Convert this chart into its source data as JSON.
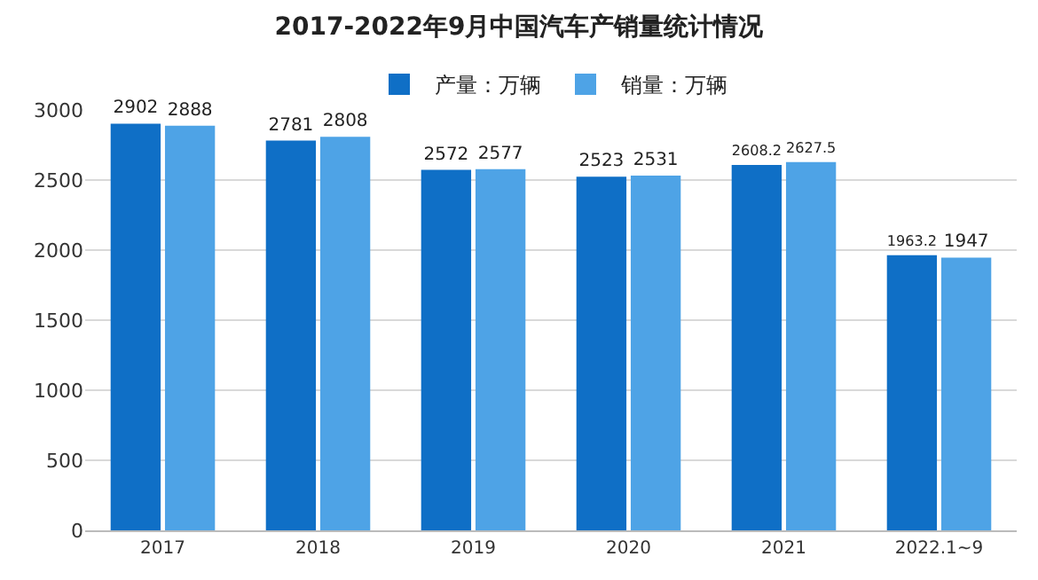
{
  "chart_data": {
    "type": "bar",
    "title": "2017-2022年9月中国汽车产销量统计情况",
    "categories": [
      "2017",
      "2018",
      "2019",
      "2020",
      "2021",
      "2022.1~9"
    ],
    "series": [
      {
        "name": "产量：万辆",
        "color": "#0f6fc6",
        "values": [
          2902,
          2781,
          2572,
          2523,
          2608.2,
          1963.2
        ]
      },
      {
        "name": "销量：万辆",
        "color": "#4ea3e6",
        "values": [
          2888,
          2808,
          2577,
          2531,
          2627.5,
          1947
        ]
      }
    ],
    "ylim": [
      0,
      3000
    ],
    "yticks": [
      0,
      500,
      1000,
      1500,
      2000,
      2500,
      3000
    ],
    "grid": "y",
    "legend": "top",
    "data_labels": true
  }
}
